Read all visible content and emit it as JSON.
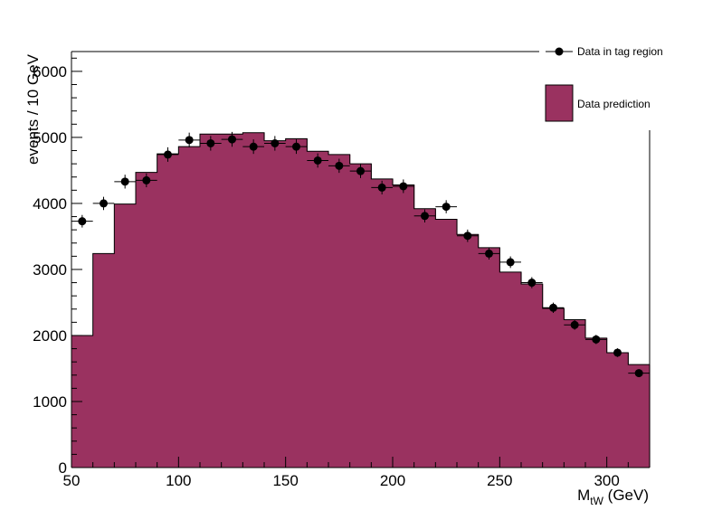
{
  "chart_data": {
    "type": "bar",
    "xlabel_main": "M",
    "xlabel_sub": "tW",
    "xlabel_unit": " (GeV)",
    "ylabel": "events / 10 GeV",
    "xlim": [
      50,
      320
    ],
    "ylim": [
      0,
      6300
    ],
    "xticks": [
      50,
      100,
      150,
      200,
      250,
      300
    ],
    "yticks": [
      0,
      1000,
      2000,
      3000,
      4000,
      5000,
      6000
    ],
    "fill_color": "#9a3260",
    "series": [
      {
        "name": "Data prediction",
        "kind": "histogram",
        "bin_edges": [
          50,
          60,
          70,
          80,
          90,
          100,
          110,
          120,
          130,
          140,
          150,
          160,
          170,
          180,
          190,
          200,
          210,
          220,
          230,
          240,
          250,
          260,
          270,
          280,
          290,
          300,
          310,
          320
        ],
        "values": [
          2000,
          3240,
          3990,
          4470,
          4750,
          4860,
          5050,
          5050,
          5070,
          4950,
          4980,
          4790,
          4740,
          4600,
          4370,
          4280,
          3920,
          3760,
          3530,
          3330,
          2960,
          2780,
          2410,
          2240,
          1960,
          1740,
          1560
        ]
      },
      {
        "name": "Data in tag region",
        "kind": "points",
        "x": [
          55,
          65,
          75,
          85,
          95,
          105,
          115,
          125,
          135,
          145,
          155,
          165,
          175,
          185,
          195,
          205,
          215,
          225,
          235,
          245,
          255,
          265,
          275,
          285,
          295,
          305,
          315
        ],
        "values": [
          3730,
          4000,
          4330,
          4350,
          4740,
          4960,
          4910,
          4970,
          4860,
          4910,
          4860,
          4650,
          4570,
          4490,
          4240,
          4260,
          3810,
          3950,
          3510,
          3240,
          3110,
          2800,
          2420,
          2160,
          1940,
          1740,
          1430
        ],
        "errors": [
          95,
          100,
          105,
          105,
          110,
          112,
          111,
          112,
          110,
          111,
          110,
          108,
          107,
          106,
          103,
          103,
          98,
          99,
          94,
          90,
          88,
          84,
          78,
          73,
          70,
          66,
          60
        ]
      }
    ],
    "legend": {
      "position": "top-right",
      "entries": [
        "Data in tag region",
        "Data prediction"
      ]
    }
  }
}
